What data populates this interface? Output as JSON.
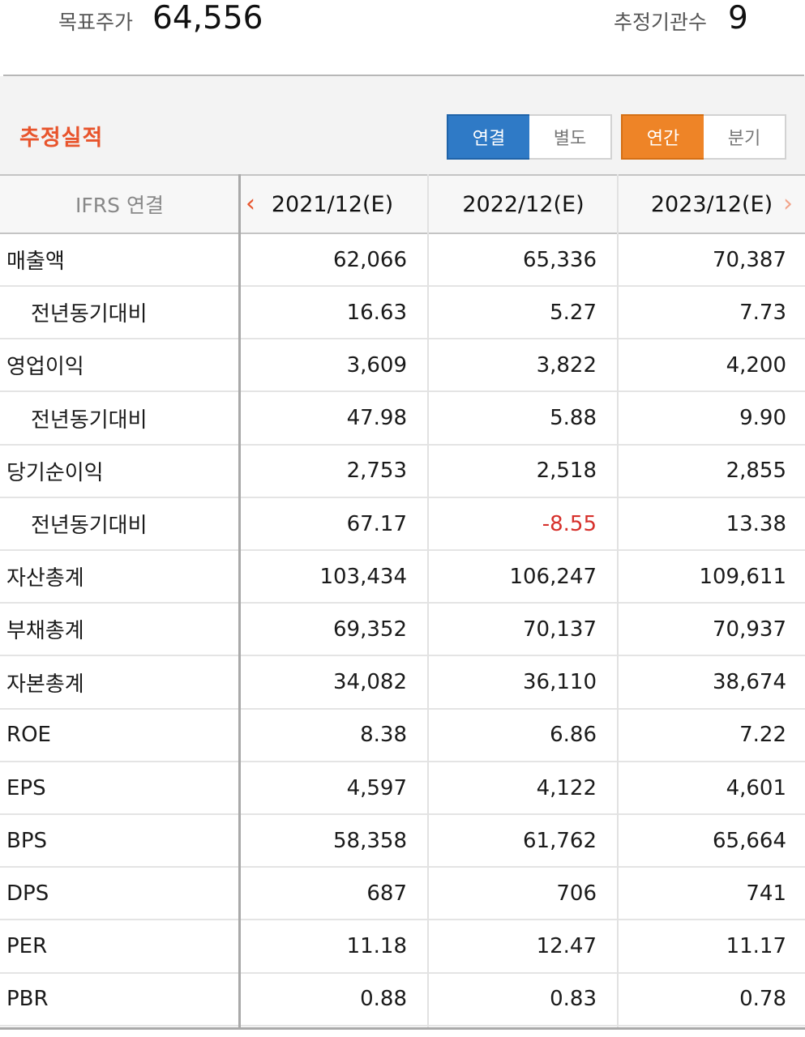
{
  "summary": {
    "target_price_label": "목표주가",
    "target_price_value": "64,556",
    "estimator_count_label": "추정기관수",
    "estimator_count_value": "9"
  },
  "section": {
    "title": "추정실적",
    "toggle_scope": {
      "options": [
        "연결",
        "별도"
      ],
      "selected": "연결"
    },
    "toggle_period": {
      "options": [
        "연간",
        "분기"
      ],
      "selected": "연간"
    },
    "colors": {
      "title": "#e8542c",
      "scope_active": "#2f7ac6",
      "period_active": "#ee8427"
    }
  },
  "table": {
    "header_label": "IFRS 연결",
    "columns": [
      "2021/12(E)",
      "2022/12(E)",
      "2023/12(E)"
    ],
    "prev_arrow": "‹",
    "next_arrow": "›",
    "rows": [
      {
        "label": "매출액",
        "sub": false,
        "values": [
          "62,066",
          "65,336",
          "70,387"
        ]
      },
      {
        "label": "전년동기대비",
        "sub": true,
        "values": [
          "16.63",
          "5.27",
          "7.73"
        ]
      },
      {
        "label": "영업이익",
        "sub": false,
        "values": [
          "3,609",
          "3,822",
          "4,200"
        ]
      },
      {
        "label": "전년동기대비",
        "sub": true,
        "values": [
          "47.98",
          "5.88",
          "9.90"
        ]
      },
      {
        "label": "당기순이익",
        "sub": false,
        "values": [
          "2,753",
          "2,518",
          "2,855"
        ]
      },
      {
        "label": "전년동기대비",
        "sub": true,
        "values": [
          "67.17",
          "-8.55",
          "13.38"
        ]
      },
      {
        "label": "자산총계",
        "sub": false,
        "values": [
          "103,434",
          "106,247",
          "109,611"
        ]
      },
      {
        "label": "부채총계",
        "sub": false,
        "values": [
          "69,352",
          "70,137",
          "70,937"
        ]
      },
      {
        "label": "자본총계",
        "sub": false,
        "values": [
          "34,082",
          "36,110",
          "38,674"
        ]
      },
      {
        "label": "ROE",
        "sub": false,
        "values": [
          "8.38",
          "6.86",
          "7.22"
        ]
      },
      {
        "label": "EPS",
        "sub": false,
        "values": [
          "4,597",
          "4,122",
          "4,601"
        ]
      },
      {
        "label": "BPS",
        "sub": false,
        "values": [
          "58,358",
          "61,762",
          "65,664"
        ]
      },
      {
        "label": "DPS",
        "sub": false,
        "values": [
          "687",
          "706",
          "741"
        ]
      },
      {
        "label": "PER",
        "sub": false,
        "values": [
          "11.18",
          "12.47",
          "11.17"
        ]
      },
      {
        "label": "PBR",
        "sub": false,
        "values": [
          "0.88",
          "0.83",
          "0.78"
        ]
      }
    ],
    "negative_color": "#d6302b"
  }
}
